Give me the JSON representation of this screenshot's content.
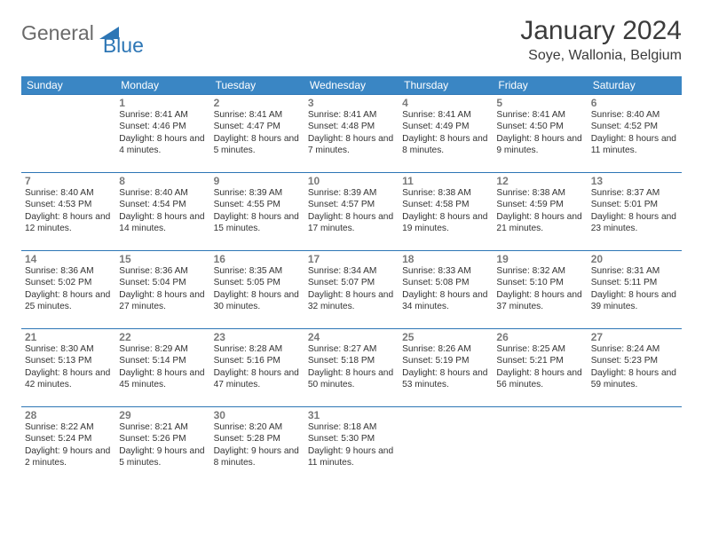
{
  "logo": {
    "general": "General",
    "blue": "Blue"
  },
  "title": "January 2024",
  "location": "Soye, Wallonia, Belgium",
  "colors": {
    "header_bg": "#3a86c4",
    "header_text": "#ffffff",
    "border": "#2d76b5",
    "daynum": "#7a7a7a",
    "body_text": "#333333",
    "logo_gray": "#6a6a6a",
    "logo_blue": "#2d76b5"
  },
  "weekdays": [
    "Sunday",
    "Monday",
    "Tuesday",
    "Wednesday",
    "Thursday",
    "Friday",
    "Saturday"
  ],
  "weeks": [
    [
      null,
      {
        "n": "1",
        "sr": "8:41 AM",
        "ss": "4:46 PM",
        "dl": "8 hours and 4 minutes."
      },
      {
        "n": "2",
        "sr": "8:41 AM",
        "ss": "4:47 PM",
        "dl": "8 hours and 5 minutes."
      },
      {
        "n": "3",
        "sr": "8:41 AM",
        "ss": "4:48 PM",
        "dl": "8 hours and 7 minutes."
      },
      {
        "n": "4",
        "sr": "8:41 AM",
        "ss": "4:49 PM",
        "dl": "8 hours and 8 minutes."
      },
      {
        "n": "5",
        "sr": "8:41 AM",
        "ss": "4:50 PM",
        "dl": "8 hours and 9 minutes."
      },
      {
        "n": "6",
        "sr": "8:40 AM",
        "ss": "4:52 PM",
        "dl": "8 hours and 11 minutes."
      }
    ],
    [
      {
        "n": "7",
        "sr": "8:40 AM",
        "ss": "4:53 PM",
        "dl": "8 hours and 12 minutes."
      },
      {
        "n": "8",
        "sr": "8:40 AM",
        "ss": "4:54 PM",
        "dl": "8 hours and 14 minutes."
      },
      {
        "n": "9",
        "sr": "8:39 AM",
        "ss": "4:55 PM",
        "dl": "8 hours and 15 minutes."
      },
      {
        "n": "10",
        "sr": "8:39 AM",
        "ss": "4:57 PM",
        "dl": "8 hours and 17 minutes."
      },
      {
        "n": "11",
        "sr": "8:38 AM",
        "ss": "4:58 PM",
        "dl": "8 hours and 19 minutes."
      },
      {
        "n": "12",
        "sr": "8:38 AM",
        "ss": "4:59 PM",
        "dl": "8 hours and 21 minutes."
      },
      {
        "n": "13",
        "sr": "8:37 AM",
        "ss": "5:01 PM",
        "dl": "8 hours and 23 minutes."
      }
    ],
    [
      {
        "n": "14",
        "sr": "8:36 AM",
        "ss": "5:02 PM",
        "dl": "8 hours and 25 minutes."
      },
      {
        "n": "15",
        "sr": "8:36 AM",
        "ss": "5:04 PM",
        "dl": "8 hours and 27 minutes."
      },
      {
        "n": "16",
        "sr": "8:35 AM",
        "ss": "5:05 PM",
        "dl": "8 hours and 30 minutes."
      },
      {
        "n": "17",
        "sr": "8:34 AM",
        "ss": "5:07 PM",
        "dl": "8 hours and 32 minutes."
      },
      {
        "n": "18",
        "sr": "8:33 AM",
        "ss": "5:08 PM",
        "dl": "8 hours and 34 minutes."
      },
      {
        "n": "19",
        "sr": "8:32 AM",
        "ss": "5:10 PM",
        "dl": "8 hours and 37 minutes."
      },
      {
        "n": "20",
        "sr": "8:31 AM",
        "ss": "5:11 PM",
        "dl": "8 hours and 39 minutes."
      }
    ],
    [
      {
        "n": "21",
        "sr": "8:30 AM",
        "ss": "5:13 PM",
        "dl": "8 hours and 42 minutes."
      },
      {
        "n": "22",
        "sr": "8:29 AM",
        "ss": "5:14 PM",
        "dl": "8 hours and 45 minutes."
      },
      {
        "n": "23",
        "sr": "8:28 AM",
        "ss": "5:16 PM",
        "dl": "8 hours and 47 minutes."
      },
      {
        "n": "24",
        "sr": "8:27 AM",
        "ss": "5:18 PM",
        "dl": "8 hours and 50 minutes."
      },
      {
        "n": "25",
        "sr": "8:26 AM",
        "ss": "5:19 PM",
        "dl": "8 hours and 53 minutes."
      },
      {
        "n": "26",
        "sr": "8:25 AM",
        "ss": "5:21 PM",
        "dl": "8 hours and 56 minutes."
      },
      {
        "n": "27",
        "sr": "8:24 AM",
        "ss": "5:23 PM",
        "dl": "8 hours and 59 minutes."
      }
    ],
    [
      {
        "n": "28",
        "sr": "8:22 AM",
        "ss": "5:24 PM",
        "dl": "9 hours and 2 minutes."
      },
      {
        "n": "29",
        "sr": "8:21 AM",
        "ss": "5:26 PM",
        "dl": "9 hours and 5 minutes."
      },
      {
        "n": "30",
        "sr": "8:20 AM",
        "ss": "5:28 PM",
        "dl": "9 hours and 8 minutes."
      },
      {
        "n": "31",
        "sr": "8:18 AM",
        "ss": "5:30 PM",
        "dl": "9 hours and 11 minutes."
      },
      null,
      null,
      null
    ]
  ],
  "labels": {
    "sunrise": "Sunrise:",
    "sunset": "Sunset:",
    "daylight": "Daylight:"
  }
}
